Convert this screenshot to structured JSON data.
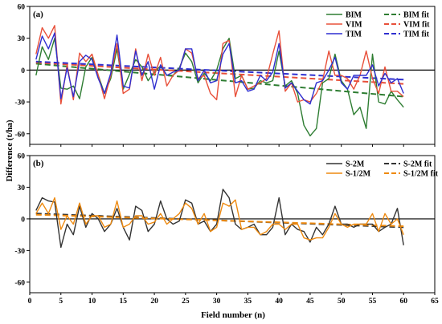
{
  "chart_data": {
    "type": "line",
    "ylabel": "Difference (t/ha)",
    "xlabel": "Field number (n)",
    "x_ticks": [
      0,
      5,
      10,
      15,
      20,
      25,
      30,
      35,
      40,
      45,
      50,
      55,
      60,
      65
    ],
    "xlim": [
      0,
      65
    ],
    "y_ticks": [
      -60,
      -30,
      0,
      30,
      60
    ],
    "ylim": [
      -70,
      60
    ],
    "grid": false,
    "zero_line": true,
    "legend_position": "top-right",
    "panels": [
      {
        "label": "(a)",
        "series": [
          {
            "name": "BIM",
            "color": "#2e7d32",
            "style": "solid",
            "values": [
              -5,
              22,
              10,
              30,
              -17,
              -18,
              -15,
              -27,
              3,
              12,
              -5,
              -22,
              -8,
              20,
              -18,
              -4,
              10,
              3,
              -10,
              -2,
              4,
              -5,
              -5,
              2,
              16,
              8,
              -12,
              -3,
              -10,
              0,
              20,
              30,
              -8,
              -5,
              -18,
              -17,
              -10,
              -12,
              -10,
              18,
              -15,
              -10,
              -22,
              -52,
              -62,
              -55,
              -12,
              -8,
              15,
              -10,
              -18,
              -42,
              -35,
              -55,
              15,
              -30,
              -32,
              -20,
              -28,
              -35
            ]
          },
          {
            "name": "VIM",
            "color": "#e8503a",
            "style": "solid",
            "values": [
              15,
              40,
              30,
              42,
              -32,
              5,
              -28,
              16,
              8,
              15,
              -5,
              -27,
              -5,
              25,
              -22,
              -18,
              20,
              -10,
              15,
              -5,
              12,
              -15,
              -5,
              0,
              20,
              16,
              -8,
              -5,
              -22,
              -28,
              25,
              28,
              -25,
              -5,
              -18,
              -15,
              -12,
              -8,
              15,
              37,
              -20,
              -12,
              -30,
              -28,
              -30,
              -22,
              -10,
              18,
              -5,
              -5,
              -8,
              -18,
              -5,
              18,
              -8,
              -22,
              3,
              -20,
              -20,
              -25
            ]
          },
          {
            "name": "TIM",
            "color": "#2f2fd0",
            "style": "solid",
            "values": [
              10,
              32,
              20,
              35,
              -27,
              2,
              -25,
              8,
              14,
              10,
              -8,
              -22,
              -3,
              33,
              -15,
              -17,
              18,
              -5,
              8,
              -18,
              5,
              -5,
              -2,
              0,
              20,
              20,
              -10,
              0,
              -12,
              -10,
              15,
              25,
              -12,
              -10,
              -20,
              -18,
              -5,
              -10,
              -2,
              25,
              -17,
              -12,
              -20,
              -28,
              -32,
              -12,
              -10,
              0,
              12,
              -12,
              -18,
              -5,
              -5,
              -5,
              5,
              -15,
              -3,
              -12,
              -8,
              -22
            ]
          },
          {
            "name": "BIM fit",
            "color": "#2e7d32",
            "style": "dashed",
            "values": [
              6,
              -25
            ]
          },
          {
            "name": "VIM fit",
            "color": "#e8503a",
            "style": "dashed",
            "values": [
              7,
              -13
            ]
          },
          {
            "name": "TIM fit",
            "color": "#2f2fd0",
            "style": "dashed",
            "values": [
              8,
              -9
            ]
          }
        ]
      },
      {
        "label": "(b)",
        "series": [
          {
            "name": "S-2M",
            "color": "#333333",
            "style": "solid",
            "values": [
              8,
              20,
              17,
              16,
              -27,
              -5,
              -15,
              12,
              -8,
              5,
              0,
              -12,
              -5,
              10,
              -8,
              -20,
              12,
              8,
              -12,
              -5,
              17,
              0,
              -5,
              -2,
              18,
              15,
              -5,
              -2,
              -12,
              -5,
              28,
              20,
              -5,
              -10,
              -8,
              -5,
              -15,
              -15,
              -8,
              20,
              -15,
              -5,
              -10,
              -12,
              -22,
              -8,
              -15,
              -5,
              12,
              -5,
              -5,
              -8,
              -5,
              -5,
              -5,
              -12,
              -8,
              -5,
              10,
              -25
            ]
          },
          {
            "name": "S-1/2M",
            "color": "#ee8a10",
            "style": "solid",
            "values": [
              5,
              15,
              5,
              20,
              -10,
              3,
              -5,
              15,
              -5,
              3,
              3,
              -8,
              -5,
              17,
              -8,
              -5,
              3,
              3,
              -5,
              -3,
              5,
              -5,
              0,
              5,
              15,
              10,
              -5,
              5,
              -12,
              -8,
              15,
              12,
              18,
              -10,
              -8,
              -8,
              -15,
              -12,
              -5,
              -5,
              -10,
              -5,
              -5,
              -18,
              -20,
              -18,
              -18,
              -8,
              5,
              -5,
              -8,
              -5,
              -5,
              -5,
              5,
              -12,
              5,
              -5,
              0,
              -15
            ]
          },
          {
            "name": "S-2M fit",
            "color": "#333333",
            "style": "dashed",
            "values": [
              5,
              -8
            ]
          },
          {
            "name": "S-1/2M fit",
            "color": "#ee8a10",
            "style": "dashed",
            "values": [
              4,
              -7
            ]
          }
        ]
      }
    ]
  }
}
